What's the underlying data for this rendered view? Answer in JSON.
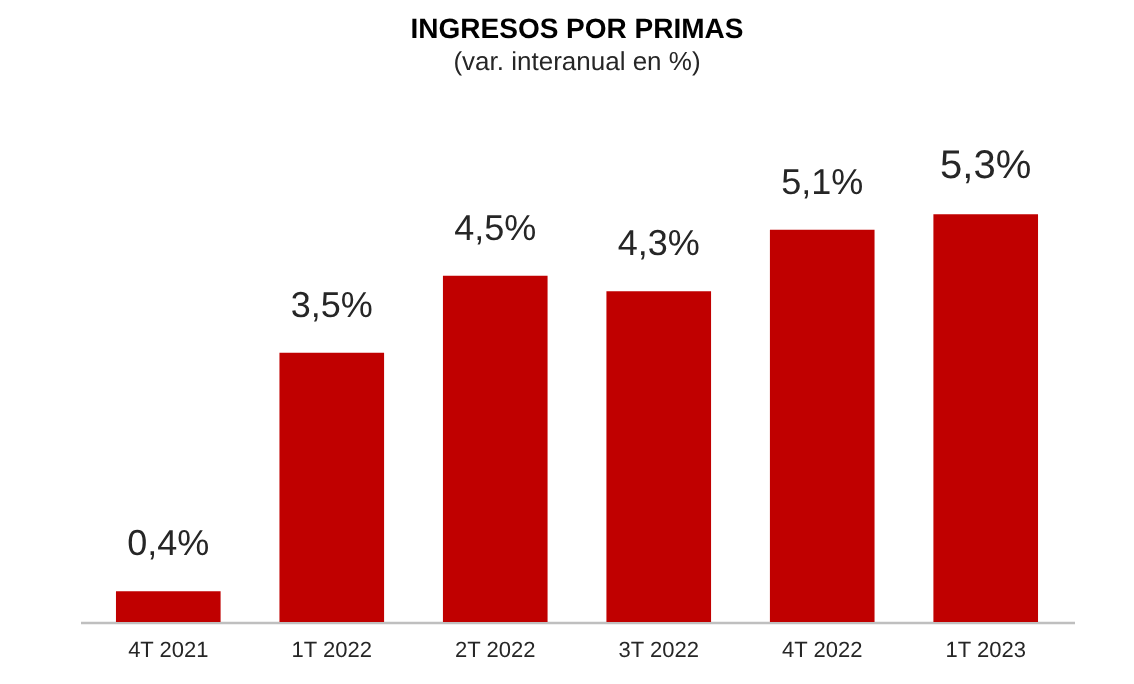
{
  "chart_data": {
    "type": "bar",
    "title": "INGRESOS POR PRIMAS",
    "subtitle": "(var. interanual en %)",
    "categories": [
      "4T 2021",
      "1T 2022",
      "2T 2022",
      "3T 2022",
      "4T 2022",
      "1T 2023"
    ],
    "values": [
      0.4,
      3.5,
      4.5,
      4.3,
      5.1,
      5.3
    ],
    "value_labels": [
      "0,4%",
      "3,5%",
      "4,5%",
      "4,3%",
      "5,1%",
      "5,3%"
    ],
    "color": "#c00000",
    "grid": false
  }
}
